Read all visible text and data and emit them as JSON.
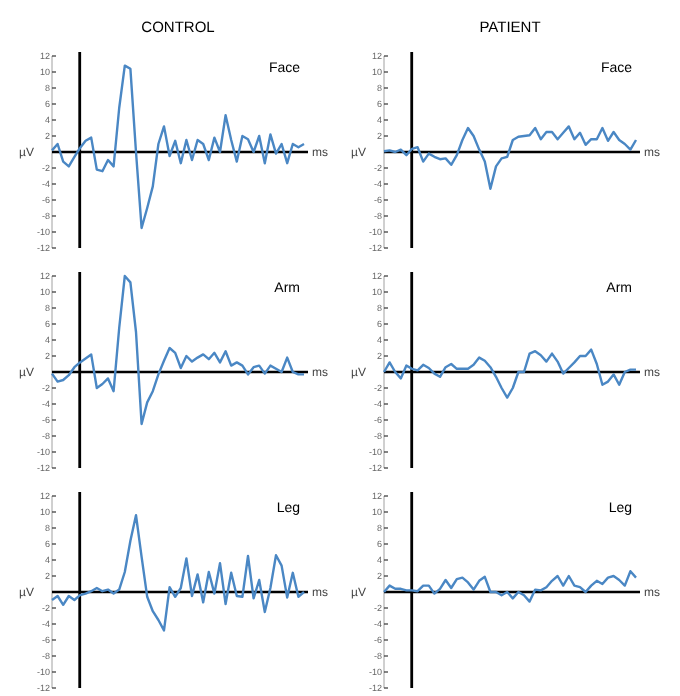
{
  "chart_data": [
    {
      "type": "line",
      "title": "CONTROL",
      "xlabel": "ms",
      "ylabel": "µV",
      "annotations": [
        "Face"
      ],
      "tick_labels": "y",
      "grid": false,
      "ylim": [
        -12,
        12
      ],
      "yticks": [
        {
          "value": 12,
          "label": "12"
        },
        {
          "value": 10,
          "label": "10"
        },
        {
          "value": 8,
          "label": "8"
        },
        {
          "value": 6,
          "label": "6"
        },
        {
          "value": 4,
          "label": "4"
        },
        {
          "value": 2,
          "label": "2"
        },
        {
          "value": 0,
          "label": null
        },
        {
          "value": -2,
          "label": "-2"
        },
        {
          "value": -4,
          "label": "-4"
        },
        {
          "value": -6,
          "label": "-6"
        },
        {
          "value": -8,
          "label": "-8"
        },
        {
          "value": -10,
          "label": "-10"
        },
        {
          "value": -12,
          "label": "-12"
        }
      ],
      "categories": [
        null,
        null,
        null,
        null,
        null,
        null,
        null,
        null,
        null,
        null,
        null,
        null,
        null,
        null,
        null,
        null,
        null,
        null,
        null,
        null,
        null,
        null,
        null,
        null,
        null,
        null,
        null,
        null,
        null,
        null,
        null,
        null,
        null,
        null,
        null,
        null,
        null,
        null,
        null,
        null,
        null,
        null,
        null,
        null,
        null,
        null
      ],
      "series": [
        {
          "color": "#4a87c4",
          "values": [
            0.2,
            1.0,
            -1.2,
            -1.8,
            -0.6,
            0.5,
            1.4,
            1.8,
            -2.2,
            -2.4,
            -1.0,
            -1.8,
            5.5,
            10.8,
            10.4,
            0,
            -9.5,
            -7,
            -4.3,
            1,
            3.2,
            -0.5,
            1.4,
            -1.4,
            1.5,
            -1,
            1.5,
            1,
            -1,
            1.8,
            0,
            4.6,
            1.5,
            -1.2,
            2,
            1.6,
            0,
            2,
            -1.4,
            2.2,
            -0.2,
            1,
            -1.4,
            1,
            0.6,
            1
          ]
        }
      ]
    },
    {
      "type": "line",
      "title": "PATIENT",
      "xlabel": "ms",
      "ylabel": "µV",
      "annotations": [
        "Face"
      ],
      "tick_labels": "y",
      "grid": false,
      "ylim": [
        -12,
        12
      ],
      "yticks": [
        {
          "value": 12,
          "label": "12"
        },
        {
          "value": 10,
          "label": "10"
        },
        {
          "value": 8,
          "label": "8"
        },
        {
          "value": 6,
          "label": "6"
        },
        {
          "value": 4,
          "label": "4"
        },
        {
          "value": 2,
          "label": "2"
        },
        {
          "value": 0,
          "label": null
        },
        {
          "value": -2,
          "label": "-2"
        },
        {
          "value": -4,
          "label": "-4"
        },
        {
          "value": -6,
          "label": "-6"
        },
        {
          "value": -8,
          "label": "-8"
        },
        {
          "value": -10,
          "label": "-10"
        },
        {
          "value": -12,
          "label": "-12"
        }
      ],
      "categories": [
        null,
        null,
        null,
        null,
        null,
        null,
        null,
        null,
        null,
        null,
        null,
        null,
        null,
        null,
        null,
        null,
        null,
        null,
        null,
        null,
        null,
        null,
        null,
        null,
        null,
        null,
        null,
        null,
        null,
        null,
        null,
        null,
        null,
        null,
        null,
        null,
        null,
        null,
        null,
        null,
        null,
        null,
        null,
        null,
        null,
        null
      ],
      "series": [
        {
          "color": "#4a87c4",
          "values": [
            0.1,
            0.2,
            0,
            0.3,
            -0.4,
            0.4,
            0.6,
            -1.2,
            -0.2,
            -0.6,
            -0.9,
            -0.8,
            -1.6,
            -0.4,
            1.5,
            3,
            2,
            0.3,
            -1.2,
            -4.6,
            -1.8,
            -0.8,
            -0.6,
            1.5,
            1.9,
            2,
            2.1,
            3,
            1.6,
            2.5,
            2.5,
            1.6,
            2.4,
            3.2,
            1.6,
            2.4,
            0.9,
            1.6,
            1.6,
            3,
            1.4,
            2.5,
            1.5,
            1,
            0.3,
            1.5
          ]
        }
      ]
    },
    {
      "type": "line",
      "xlabel": "ms",
      "ylabel": "µV",
      "annotations": [
        "Arm"
      ],
      "tick_labels": "y",
      "grid": false,
      "ylim": [
        -12,
        12
      ],
      "yticks": [
        {
          "value": 12,
          "label": "12"
        },
        {
          "value": 10,
          "label": "10"
        },
        {
          "value": 8,
          "label": "8"
        },
        {
          "value": 6,
          "label": "6"
        },
        {
          "value": 4,
          "label": "4"
        },
        {
          "value": 2,
          "label": "2"
        },
        {
          "value": 0,
          "label": null
        },
        {
          "value": -2,
          "label": "-2"
        },
        {
          "value": -4,
          "label": "-4"
        },
        {
          "value": -6,
          "label": "-6"
        },
        {
          "value": -8,
          "label": "-8"
        },
        {
          "value": -10,
          "label": "-10"
        },
        {
          "value": -12,
          "label": "-12"
        }
      ],
      "categories": [
        null,
        null,
        null,
        null,
        null,
        null,
        null,
        null,
        null,
        null,
        null,
        null,
        null,
        null,
        null,
        null,
        null,
        null,
        null,
        null,
        null,
        null,
        null,
        null,
        null,
        null,
        null,
        null,
        null,
        null,
        null,
        null,
        null,
        null,
        null,
        null,
        null,
        null,
        null,
        null,
        null,
        null,
        null,
        null,
        null,
        null
      ],
      "series": [
        {
          "color": "#4a87c4",
          "values": [
            -0.2,
            -1.2,
            -1,
            -0.4,
            0.6,
            1.2,
            1.7,
            2.2,
            -2,
            -1.5,
            -0.8,
            -2.4,
            5.5,
            12,
            11.2,
            5,
            -6.5,
            -3.8,
            -2.4,
            -0.3,
            1.4,
            3,
            2.4,
            0.5,
            2,
            1.3,
            1.8,
            2.2,
            1.6,
            2.4,
            1.2,
            2.6,
            0.8,
            1.2,
            0.8,
            -0.3,
            0.6,
            0.8,
            -0.2,
            0.8,
            0.4,
            0,
            1.8,
            0,
            -0.3,
            -0.3
          ]
        }
      ]
    },
    {
      "type": "line",
      "xlabel": "ms",
      "ylabel": "µV",
      "annotations": [
        "Arm"
      ],
      "tick_labels": "y",
      "grid": false,
      "ylim": [
        -12,
        12
      ],
      "yticks": [
        {
          "value": 12,
          "label": "12"
        },
        {
          "value": 10,
          "label": "10"
        },
        {
          "value": 8,
          "label": "8"
        },
        {
          "value": 6,
          "label": "6"
        },
        {
          "value": 4,
          "label": "4"
        },
        {
          "value": 2,
          "label": "2"
        },
        {
          "value": 0,
          "label": null
        },
        {
          "value": -2,
          "label": "-2"
        },
        {
          "value": -4,
          "label": "-4"
        },
        {
          "value": -6,
          "label": "-6"
        },
        {
          "value": -8,
          "label": "-8"
        },
        {
          "value": -10,
          "label": "-10"
        },
        {
          "value": -12,
          "label": "-12"
        }
      ],
      "categories": [
        null,
        null,
        null,
        null,
        null,
        null,
        null,
        null,
        null,
        null,
        null,
        null,
        null,
        null,
        null,
        null,
        null,
        null,
        null,
        null,
        null,
        null,
        null,
        null,
        null,
        null,
        null,
        null,
        null,
        null,
        null,
        null,
        null,
        null,
        null,
        null,
        null,
        null,
        null,
        null,
        null,
        null,
        null,
        null,
        null,
        null
      ],
      "series": [
        {
          "color": "#4a87c4",
          "values": [
            0,
            1.2,
            0,
            -0.8,
            0.8,
            0.4,
            0.2,
            0.9,
            0.5,
            -0.2,
            -0.6,
            0.6,
            1,
            0.4,
            0.4,
            0.4,
            0.9,
            1.8,
            1.4,
            0.6,
            -0.6,
            -2,
            -3.2,
            -2,
            0,
            0,
            2.3,
            2.6,
            2.1,
            1.3,
            2.3,
            1.3,
            -0.2,
            0.5,
            1.2,
            2,
            2,
            2.8,
            1,
            -1.6,
            -1.2,
            -0.3,
            -1.6,
            0,
            0.3,
            0.3
          ]
        }
      ]
    },
    {
      "type": "line",
      "xlabel": "ms",
      "ylabel": "µV",
      "annotations": [
        "Leg"
      ],
      "tick_labels": "y",
      "grid": false,
      "ylim": [
        -12,
        12
      ],
      "yticks": [
        {
          "value": 12,
          "label": "12"
        },
        {
          "value": 10,
          "label": "10"
        },
        {
          "value": 8,
          "label": "8"
        },
        {
          "value": 6,
          "label": "6"
        },
        {
          "value": 4,
          "label": "4"
        },
        {
          "value": 2,
          "label": "2"
        },
        {
          "value": 0,
          "label": null
        },
        {
          "value": -2,
          "label": "-2"
        },
        {
          "value": -4,
          "label": "-4"
        },
        {
          "value": -6,
          "label": "-6"
        },
        {
          "value": -8,
          "label": "-8"
        },
        {
          "value": -10,
          "label": "-10"
        },
        {
          "value": -12,
          "label": "-12"
        }
      ],
      "categories": [
        null,
        null,
        null,
        null,
        null,
        null,
        null,
        null,
        null,
        null,
        null,
        null,
        null,
        null,
        null,
        null,
        null,
        null,
        null,
        null,
        null,
        null,
        null,
        null,
        null,
        null,
        null,
        null,
        null,
        null,
        null,
        null,
        null,
        null,
        null,
        null,
        null,
        null,
        null,
        null,
        null,
        null,
        null,
        null,
        null,
        null
      ],
      "series": [
        {
          "color": "#4a87c4",
          "values": [
            -1,
            -0.5,
            -1.6,
            -0.5,
            -1,
            -0.4,
            -0.2,
            0.1,
            0.5,
            0.1,
            0.3,
            -0.2,
            0.3,
            2.5,
            6.4,
            9.6,
            4.4,
            -0.6,
            -2.4,
            -3.5,
            -4.8,
            0.6,
            -0.6,
            0.5,
            4.2,
            -0.5,
            2.2,
            -1.3,
            2.5,
            -0.2,
            3.6,
            -1.5,
            2.4,
            -0.5,
            -0.6,
            4.5,
            -0.8,
            1.5,
            -2.5,
            0.5,
            4.6,
            3.3,
            -0.7,
            2.4,
            -0.6,
            0
          ]
        }
      ]
    },
    {
      "type": "line",
      "xlabel": "ms",
      "ylabel": "µV",
      "annotations": [
        "Leg"
      ],
      "tick_labels": "y",
      "grid": false,
      "ylim": [
        -12,
        12
      ],
      "yticks": [
        {
          "value": 12,
          "label": "12"
        },
        {
          "value": 10,
          "label": "10"
        },
        {
          "value": 8,
          "label": "8"
        },
        {
          "value": 6,
          "label": "6"
        },
        {
          "value": 4,
          "label": "4"
        },
        {
          "value": 2,
          "label": "2"
        },
        {
          "value": 0,
          "label": null
        },
        {
          "value": -2,
          "label": "-2"
        },
        {
          "value": -4,
          "label": "-4"
        },
        {
          "value": -6,
          "label": "-6"
        },
        {
          "value": -8,
          "label": "-8"
        },
        {
          "value": -10,
          "label": "-10"
        },
        {
          "value": -12,
          "label": "-12"
        }
      ],
      "categories": [
        null,
        null,
        null,
        null,
        null,
        null,
        null,
        null,
        null,
        null,
        null,
        null,
        null,
        null,
        null,
        null,
        null,
        null,
        null,
        null,
        null,
        null,
        null,
        null,
        null,
        null,
        null,
        null,
        null,
        null,
        null,
        null,
        null,
        null,
        null,
        null,
        null,
        null,
        null,
        null,
        null,
        null,
        null,
        null,
        null,
        null
      ],
      "series": [
        {
          "color": "#4a87c4",
          "values": [
            0,
            0.8,
            0.4,
            0.4,
            0.2,
            0.2,
            0.1,
            0.8,
            0.8,
            -0.2,
            0.4,
            1.5,
            0.5,
            1.6,
            1.8,
            1.2,
            0.3,
            1.4,
            1.9,
            0,
            0,
            -0.4,
            0,
            -0.8,
            0,
            -0.4,
            -1.2,
            0.3,
            0.2,
            0.6,
            1.4,
            2,
            0.8,
            2,
            0.8,
            0.6,
            0,
            0.8,
            1.4,
            1,
            1.8,
            2,
            1.5,
            0.8,
            2.6,
            1.8
          ]
        }
      ]
    }
  ]
}
